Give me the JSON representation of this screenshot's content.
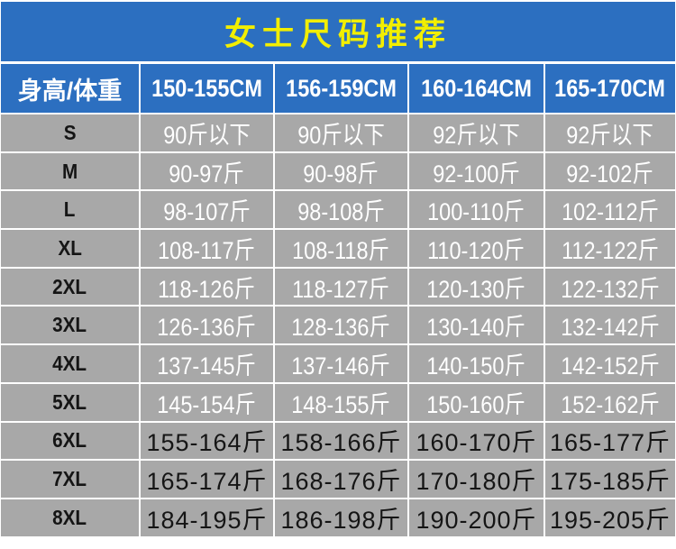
{
  "title": "女士尺码推荐",
  "colors": {
    "header_bg": "#2c6fc0",
    "title_text": "#f2ee00",
    "cell_bg": "#a8a8a8",
    "light_text": "#ffffff",
    "dark_text": "#151515"
  },
  "chart_data": {
    "type": "table",
    "title": "女士尺码推荐",
    "columns": [
      "身高/体重",
      "150-155CM",
      "156-159CM",
      "160-164CM",
      "165-170CM"
    ],
    "rows": [
      {
        "label": "S",
        "values": [
          "90斤以下",
          "90斤以下",
          "92斤以下",
          "92斤以下"
        ]
      },
      {
        "label": "M",
        "values": [
          "90-97斤",
          "90-98斤",
          "92-100斤",
          "92-102斤"
        ]
      },
      {
        "label": "L",
        "values": [
          "98-107斤",
          "98-108斤",
          "100-110斤",
          "102-112斤"
        ]
      },
      {
        "label": "XL",
        "values": [
          "108-117斤",
          "108-118斤",
          "110-120斤",
          "112-122斤"
        ]
      },
      {
        "label": "2XL",
        "values": [
          "118-126斤",
          "118-127斤",
          "120-130斤",
          "122-132斤"
        ]
      },
      {
        "label": "3XL",
        "values": [
          "126-136斤",
          "128-136斤",
          "130-140斤",
          "132-142斤"
        ]
      },
      {
        "label": "4XL",
        "values": [
          "137-145斤",
          "137-146斤",
          "140-150斤",
          "142-152斤"
        ]
      },
      {
        "label": "5XL",
        "values": [
          "145-154斤",
          "148-155斤",
          "150-160斤",
          "152-162斤"
        ]
      },
      {
        "label": "6XL",
        "values": [
          "155-164斤",
          "158-166斤",
          "160-170斤",
          "165-177斤"
        ]
      },
      {
        "label": "7XL",
        "values": [
          "165-174斤",
          "168-176斤",
          "170-180斤",
          "175-185斤"
        ]
      },
      {
        "label": "8XL",
        "values": [
          "184-195斤",
          "186-198斤",
          "190-200斤",
          "195-205斤"
        ]
      }
    ]
  }
}
